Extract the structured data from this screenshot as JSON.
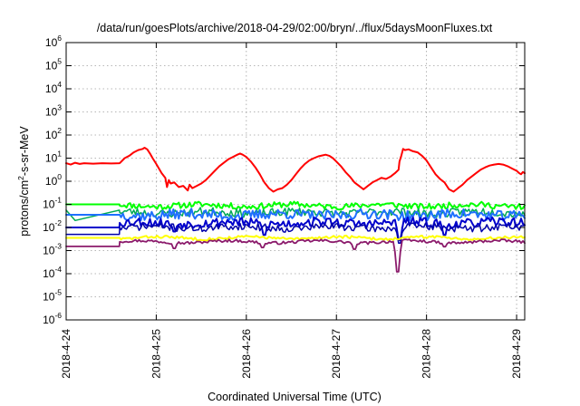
{
  "chart_data": {
    "type": "line",
    "title": "/data/run/goesPlots/archive/2018-04-29/02:00/bryn/../flux/5daysMoonFluxes.txt",
    "xlabel": "Coordinated Universal Time (UTC)",
    "ylabel": {
      "base": "protons/cm",
      "sup": "2",
      "rest": "-s-sr-MeV"
    },
    "x_unit": "days since 2018-4-24 00:00 UTC",
    "xlim": [
      0,
      5.09
    ],
    "ylim_log10": [
      -6,
      6
    ],
    "y_scale": "log",
    "grid": true,
    "x_ticks": [
      {
        "v": 0,
        "label": "2018-4-24"
      },
      {
        "v": 1,
        "label": "2018-4-25"
      },
      {
        "v": 2,
        "label": "2018-4-26"
      },
      {
        "v": 3,
        "label": "2018-4-27"
      },
      {
        "v": 4,
        "label": "2018-4-28"
      },
      {
        "v": 5,
        "label": "2018-4-29"
      }
    ],
    "y_ticks": [
      {
        "v": -6,
        "base": "10",
        "exp": "-6"
      },
      {
        "v": -5,
        "base": "10",
        "exp": "-5"
      },
      {
        "v": -4,
        "base": "10",
        "exp": "-4"
      },
      {
        "v": -3,
        "base": "10",
        "exp": "-3"
      },
      {
        "v": -2,
        "base": "10",
        "exp": "-2"
      },
      {
        "v": -1,
        "base": "10",
        "exp": "-1"
      },
      {
        "v": 0,
        "base": "10",
        "exp": "0"
      },
      {
        "v": 1,
        "base": "10",
        "exp": "1"
      },
      {
        "v": 2,
        "base": "10",
        "exp": "2"
      },
      {
        "v": 3,
        "base": "10",
        "exp": "3"
      },
      {
        "v": 4,
        "base": "10",
        "exp": "4"
      },
      {
        "v": 5,
        "base": "10",
        "exp": "5"
      },
      {
        "v": 6,
        "base": "10",
        "exp": "6"
      }
    ],
    "series": [
      {
        "color": "#ff0000",
        "width": 2,
        "points_log10": [
          [
            0,
            0.78
          ],
          [
            0.05,
            0.72
          ],
          [
            0.1,
            0.8
          ],
          [
            0.15,
            0.75
          ],
          [
            0.2,
            0.78
          ],
          [
            0.3,
            0.76
          ],
          [
            0.4,
            0.78
          ],
          [
            0.5,
            0.77
          ],
          [
            0.59,
            0.78
          ],
          [
            0.6,
            0.8
          ],
          [
            0.65,
            1.0
          ],
          [
            0.7,
            1.1
          ],
          [
            0.75,
            1.25
          ],
          [
            0.8,
            1.35
          ],
          [
            0.85,
            1.4
          ],
          [
            0.87,
            1.45
          ],
          [
            0.9,
            1.38
          ],
          [
            0.93,
            1.2
          ],
          [
            0.96,
            1.0
          ],
          [
            1.0,
            0.75
          ],
          [
            1.03,
            0.55
          ],
          [
            1.06,
            0.35
          ],
          [
            1.1,
            0.15
          ],
          [
            1.12,
            -0.25
          ],
          [
            1.14,
            0.05
          ],
          [
            1.16,
            -0.1
          ],
          [
            1.2,
            -0.05
          ],
          [
            1.25,
            -0.25
          ],
          [
            1.3,
            -0.2
          ],
          [
            1.35,
            -0.4
          ],
          [
            1.37,
            -0.15
          ],
          [
            1.4,
            -0.3
          ],
          [
            1.45,
            -0.2
          ],
          [
            1.5,
            -0.1
          ],
          [
            1.55,
            0.05
          ],
          [
            1.6,
            0.25
          ],
          [
            1.65,
            0.45
          ],
          [
            1.7,
            0.65
          ],
          [
            1.75,
            0.8
          ],
          [
            1.8,
            0.95
          ],
          [
            1.85,
            1.05
          ],
          [
            1.9,
            1.15
          ],
          [
            1.93,
            1.2
          ],
          [
            1.96,
            1.15
          ],
          [
            2.0,
            1.05
          ],
          [
            2.05,
            0.85
          ],
          [
            2.1,
            0.6
          ],
          [
            2.15,
            0.3
          ],
          [
            2.2,
            -0.05
          ],
          [
            2.25,
            -0.3
          ],
          [
            2.3,
            -0.45
          ],
          [
            2.35,
            -0.35
          ],
          [
            2.4,
            -0.3
          ],
          [
            2.45,
            -0.15
          ],
          [
            2.5,
            0.05
          ],
          [
            2.55,
            0.3
          ],
          [
            2.6,
            0.55
          ],
          [
            2.65,
            0.75
          ],
          [
            2.7,
            0.9
          ],
          [
            2.75,
            1.0
          ],
          [
            2.8,
            1.08
          ],
          [
            2.85,
            1.12
          ],
          [
            2.88,
            1.15
          ],
          [
            2.92,
            1.1
          ],
          [
            2.96,
            1.0
          ],
          [
            3.0,
            0.85
          ],
          [
            3.05,
            0.65
          ],
          [
            3.1,
            0.4
          ],
          [
            3.15,
            0.2
          ],
          [
            3.2,
            -0.05
          ],
          [
            3.25,
            -0.2
          ],
          [
            3.3,
            -0.35
          ],
          [
            3.35,
            -0.2
          ],
          [
            3.4,
            -0.05
          ],
          [
            3.45,
            0.05
          ],
          [
            3.5,
            0.15
          ],
          [
            3.55,
            0.1
          ],
          [
            3.6,
            0.2
          ],
          [
            3.65,
            0.35
          ],
          [
            3.69,
            0.5
          ],
          [
            3.7,
            0.85
          ],
          [
            3.72,
            1.1
          ],
          [
            3.74,
            1.4
          ],
          [
            3.76,
            1.35
          ],
          [
            3.8,
            1.38
          ],
          [
            3.85,
            1.3
          ],
          [
            3.9,
            1.25
          ],
          [
            3.95,
            1.1
          ],
          [
            4.0,
            0.9
          ],
          [
            4.05,
            0.6
          ],
          [
            4.1,
            0.3
          ],
          [
            4.15,
            0.1
          ],
          [
            4.2,
            -0.05
          ],
          [
            4.25,
            -0.35
          ],
          [
            4.3,
            -0.45
          ],
          [
            4.35,
            -0.3
          ],
          [
            4.4,
            -0.15
          ],
          [
            4.45,
            0.05
          ],
          [
            4.5,
            0.2
          ],
          [
            4.55,
            0.35
          ],
          [
            4.6,
            0.5
          ],
          [
            4.65,
            0.6
          ],
          [
            4.7,
            0.68
          ],
          [
            4.75,
            0.72
          ],
          [
            4.8,
            0.75
          ],
          [
            4.85,
            0.72
          ],
          [
            4.9,
            0.65
          ],
          [
            4.95,
            0.55
          ],
          [
            5.0,
            0.45
          ],
          [
            5.03,
            0.35
          ],
          [
            5.05,
            0.3
          ],
          [
            5.07,
            0.4
          ],
          [
            5.09,
            0.35
          ]
        ]
      },
      {
        "color": "#00ff00",
        "width": 2,
        "base": -1.05,
        "noise": 0.13,
        "seed": 11,
        "flat": [
          0,
          0.59,
          -1.0
        ],
        "dips": []
      },
      {
        "color": "#00aa55",
        "width": 1.5,
        "base": -1.35,
        "noise": 0.18,
        "seed": 23,
        "flat": [
          0,
          0.59,
          -1.25
        ],
        "dips": [
          [
            0.1,
            -1.7
          ]
        ]
      },
      {
        "color": "#1f70ff",
        "width": 2,
        "base": -1.45,
        "noise": 0.22,
        "seed": 37,
        "flat": [
          0,
          0.59,
          -1.45
        ],
        "dips": []
      },
      {
        "color": "#0000cc",
        "width": 2,
        "base": -1.8,
        "noise": 0.2,
        "seed": 53,
        "flat": [
          0,
          0.59,
          -2.0
        ],
        "dips": [
          [
            1.2,
            -2.3
          ],
          [
            2.2,
            -2.5
          ],
          [
            3.7,
            -2.8
          ],
          [
            4.2,
            -2.5
          ]
        ]
      },
      {
        "color": "#0000aa",
        "width": 1.5,
        "base": -2.0,
        "noise": 0.16,
        "seed": 71,
        "flat": [
          0,
          0.59,
          -2.3
        ],
        "dips": [
          [
            3.7,
            -2.9
          ]
        ]
      },
      {
        "color": "#ffff00",
        "width": 2,
        "base": -2.45,
        "noise": 0.06,
        "seed": 83,
        "flat": [
          0,
          0.59,
          -2.45
        ],
        "dips": []
      },
      {
        "color": "#8b1a6b",
        "width": 1.8,
        "base": -2.62,
        "noise": 0.06,
        "seed": 97,
        "flat": [
          0,
          0.59,
          -2.82
        ],
        "dips": [
          [
            1.2,
            -3.0
          ],
          [
            2.18,
            -2.95
          ],
          [
            3.2,
            -3.05
          ],
          [
            3.68,
            -4.35
          ],
          [
            4.2,
            -2.9
          ]
        ]
      }
    ]
  }
}
